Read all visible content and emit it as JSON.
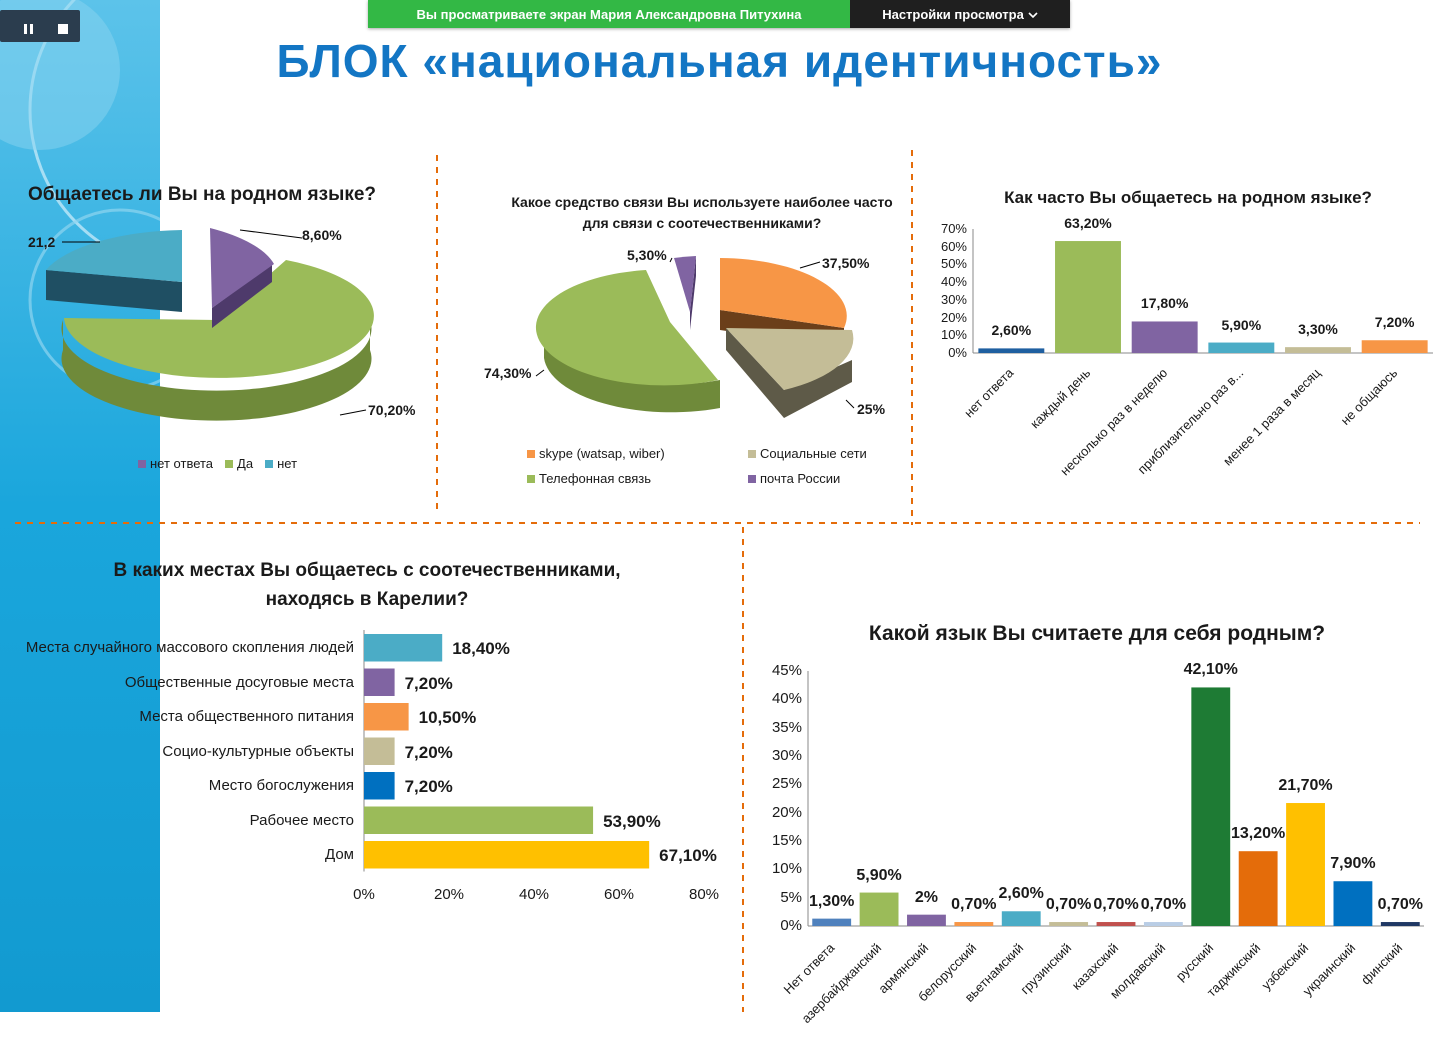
{
  "viewer": {
    "banner_text": "Вы просматриваете экран Мария Александровна Питухина",
    "view_settings_label": "Настройки просмотра",
    "chevron_icon": "chevron-down-icon",
    "pause_icon": "pause-icon",
    "stop_icon": "stop-icon",
    "colors": {
      "banner_green": "#33b845",
      "banner_dark": "#1f1f1f",
      "title_blue": "#1376c4"
    }
  },
  "slide": {
    "title": "БЛОК «национальная идентичность»"
  },
  "chart_data": [
    {
      "type": "pie",
      "title": "Общаетесь ли Вы на родном языке?",
      "categories": [
        "нет ответа",
        "Да",
        "нет"
      ],
      "values": [
        8.6,
        70.2,
        21.2
      ],
      "value_labels": [
        "8,60%",
        "70,20%",
        "21,2"
      ],
      "colors": [
        "#8064a2",
        "#9bbb59",
        "#4bacc6"
      ],
      "legend": "bottom"
    },
    {
      "type": "pie",
      "title_line1": "Какое средство связи Вы используете наиболее часто",
      "title_line2": "для связи с соотечественниками?",
      "categories": [
        "skype (watsap, wiber)",
        "Социальные сети",
        "Телефонная связь",
        "почта России"
      ],
      "values": [
        37.5,
        25,
        74.3,
        5.3
      ],
      "value_labels": [
        "37,50%",
        "25%",
        "74,30%",
        "5,30%"
      ],
      "colors": [
        "#f79646",
        "#c4bd97",
        "#9bbb59",
        "#8064a2"
      ],
      "legend": "bottom"
    },
    {
      "type": "bar",
      "title": "Как часто Вы общаетесь на родном языке?",
      "categories": [
        "нет ответа",
        "каждый день",
        "несколько раз в неделю",
        "приблизительно раз в...",
        "менее 1 раза в месяц",
        "не общаюсь"
      ],
      "values": [
        2.6,
        63.2,
        17.8,
        5.9,
        3.3,
        7.2
      ],
      "value_labels": [
        "2,60%",
        "63,20%",
        "17,80%",
        "5,90%",
        "3,30%",
        "7,20%"
      ],
      "colors": [
        "#1f5fa0",
        "#9bbb59",
        "#8064a2",
        "#4bacc6",
        "#c4bd97",
        "#f79646"
      ],
      "ylim": [
        0,
        70
      ],
      "yticks": [
        "0%",
        "10%",
        "20%",
        "30%",
        "40%",
        "50%",
        "60%",
        "70%"
      ]
    },
    {
      "type": "bar",
      "orientation": "horizontal",
      "title_line1": "В каких местах Вы общаетесь с соотечественниками,",
      "title_line2": "находясь в Карелии?",
      "categories": [
        "Места случайного массового скопления людей",
        "Общественные досуговые места",
        "Места общественного питания",
        "Социо-культурные объекты",
        "Место богослужения",
        "Рабочее место",
        "Дом"
      ],
      "values": [
        18.4,
        7.2,
        10.5,
        7.2,
        7.2,
        53.9,
        67.1
      ],
      "value_labels": [
        "18,40%",
        "7,20%",
        "10,50%",
        "7,20%",
        "7,20%",
        "53,90%",
        "67,10%"
      ],
      "colors": [
        "#4bacc6",
        "#8064a2",
        "#f79646",
        "#c4bd97",
        "#0070c0",
        "#9bbb59",
        "#ffc000"
      ],
      "xlim": [
        0,
        80
      ],
      "xticks": [
        "0%",
        "20%",
        "40%",
        "60%",
        "80%"
      ]
    },
    {
      "type": "bar",
      "title": "Какой язык Вы считаете для себя родным?",
      "categories": [
        "Нет ответа",
        "азербайджанский",
        "армянский",
        "белорусский",
        "вьетнамский",
        "грузинский",
        "казахский",
        "молдавский",
        "русский",
        "таджикский",
        "узбекский",
        "украинский",
        "финский"
      ],
      "values": [
        1.3,
        5.9,
        2,
        0.7,
        2.6,
        0.7,
        0.7,
        0.7,
        42.1,
        13.2,
        21.7,
        7.9,
        0.7
      ],
      "value_labels": [
        "1,30%",
        "5,90%",
        "2%",
        "0,70%",
        "2,60%",
        "0,70%",
        "0,70%",
        "0,70%",
        "42,10%",
        "13,20%",
        "21,70%",
        "7,90%",
        "0,70%"
      ],
      "colors": [
        "#4f81bd",
        "#9bbb59",
        "#8064a2",
        "#f79646",
        "#4bacc6",
        "#c4bd97",
        "#c0504d",
        "#b9cde5",
        "#1e7b34",
        "#e46c0a",
        "#ffc000",
        "#0070c0",
        "#1f3864"
      ],
      "ylim": [
        0,
        45
      ],
      "yticks": [
        "0%",
        "5%",
        "10%",
        "15%",
        "20%",
        "25%",
        "30%",
        "35%",
        "40%",
        "45%"
      ]
    }
  ]
}
